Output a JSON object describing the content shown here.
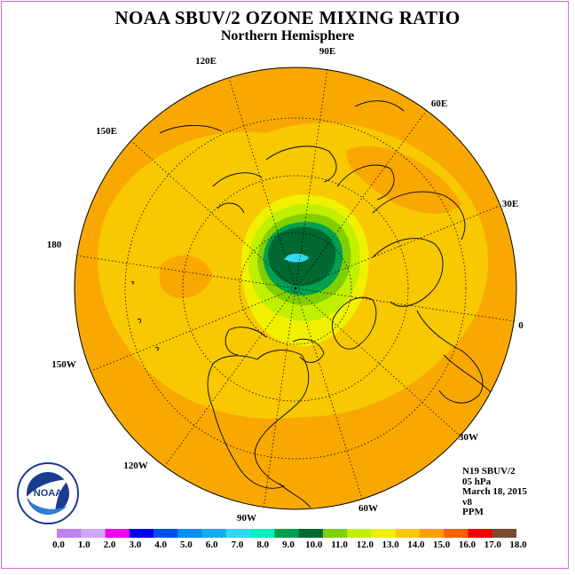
{
  "title": "NOAA SBUV/2 OZONE MIXING RATIO",
  "subtitle": "Northern Hemisphere",
  "longitude_labels": [
    "90E",
    "60E",
    "30E",
    "0",
    "30W",
    "60W",
    "90W",
    "120W",
    "150W",
    "180",
    "150E",
    "120E"
  ],
  "info": {
    "satellite": "N19 SBUV/2",
    "pressure": "05 hPa",
    "date": "March 18, 2015",
    "version": "v8",
    "units": "PPM"
  },
  "logo_text": "NOAA",
  "colorbar": {
    "ticks": [
      "0.0",
      "1.0",
      "2.0",
      "3.0",
      "4.0",
      "5.0",
      "6.0",
      "7.0",
      "8.0",
      "9.0",
      "10.0",
      "11.0",
      "12.0",
      "13.0",
      "14.0",
      "15.0",
      "16.0",
      "17.0",
      "18.0"
    ],
    "colors": [
      "#c080f0",
      "#d0a8f8",
      "#f000f0",
      "#0000e8",
      "#0050f0",
      "#0090f0",
      "#10b0f0",
      "#30d8f0",
      "#00f0c0",
      "#00a050",
      "#006830",
      "#80d000",
      "#c0f000",
      "#f0f000",
      "#f8c800",
      "#f8a000",
      "#f86000",
      "#f00000",
      "#7a4a30"
    ]
  },
  "palette": {
    "ocean_fill": "#f8a800",
    "mid_band": "#f8c800",
    "inner_yellow": "#f0f000",
    "light_green": "#c0f000",
    "green": "#80d000",
    "mid_green": "#00a050",
    "dark_green": "#006830",
    "cyan_core": "#30d8f0"
  }
}
